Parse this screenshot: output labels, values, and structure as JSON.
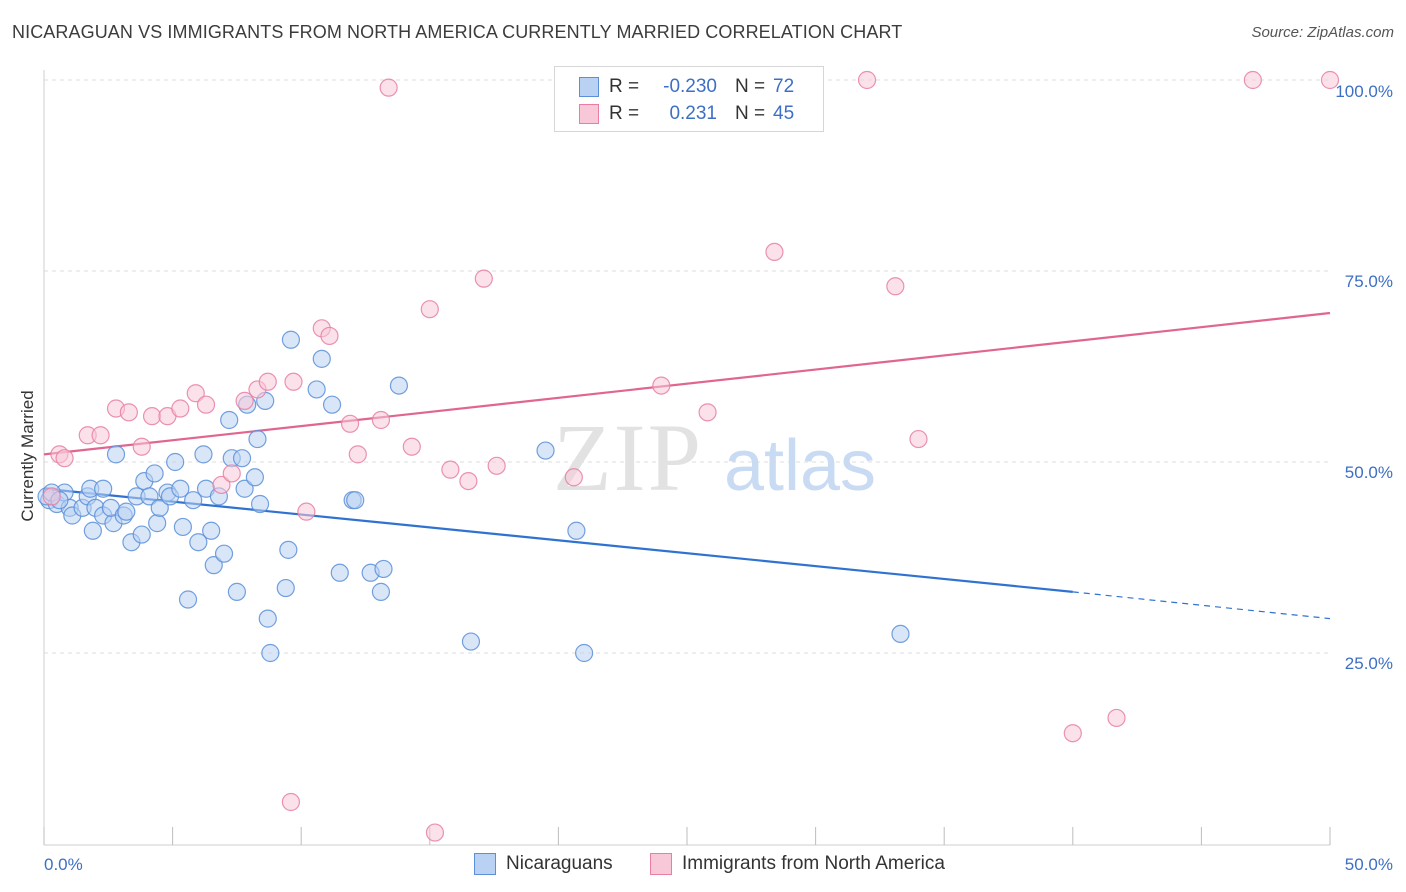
{
  "title": "NICARAGUAN VS IMMIGRANTS FROM NORTH AMERICA CURRENTLY MARRIED CORRELATION CHART",
  "source": "Source: ZipAtlas.com",
  "watermark": {
    "zip": "ZIP",
    "atlas": "atlas"
  },
  "legend": {
    "rows": [
      {
        "r_label": "R =",
        "r_value": "-0.230",
        "n_label": "N =",
        "n_value": "72",
        "color": "#5b8fd9",
        "fill": "#b9d2f3"
      },
      {
        "r_label": "R =",
        "r_value": "0.231",
        "n_label": "N =",
        "n_value": "45",
        "color": "#e87fa3",
        "fill": "#f8c8d8"
      }
    ]
  },
  "bottom_legend": [
    {
      "label": "Nicaraguans",
      "color": "#5b8fd9",
      "fill": "#b9d2f3"
    },
    {
      "label": "Immigrants from North America",
      "color": "#e87fa3",
      "fill": "#f8c8d8"
    }
  ],
  "chart_data": {
    "type": "scatter",
    "title": "NICARAGUAN VS IMMIGRANTS FROM NORTH AMERICA CURRENTLY MARRIED CORRELATION CHART",
    "xlabel": "",
    "ylabel": "Currently Married",
    "xlim": [
      0,
      50
    ],
    "ylim": [
      0,
      105
    ],
    "x_tick_labels": [
      "0.0%",
      "50.0%"
    ],
    "y_ticks": [
      25,
      50,
      75,
      100
    ],
    "y_tick_labels": [
      "25.0%",
      "50.0%",
      "75.0%",
      "100.0%"
    ],
    "grid": true,
    "series": [
      {
        "name": "Nicaraguans",
        "color": "#5b8fd9",
        "fill": "#b9d2f3",
        "trend": {
          "x0": 0,
          "y0": 46.5,
          "x1": 40,
          "y1": 33,
          "dash_to_x": 50,
          "dash_to_y": 29.5
        },
        "points": [
          [
            0.2,
            45
          ],
          [
            0.5,
            44.5
          ],
          [
            0.8,
            46
          ],
          [
            1,
            44
          ],
          [
            1.1,
            43
          ],
          [
            1.5,
            44
          ],
          [
            1.7,
            45.5
          ],
          [
            1.8,
            46.5
          ],
          [
            1.9,
            41
          ],
          [
            2.0,
            44
          ],
          [
            2.3,
            43
          ],
          [
            2.3,
            46.5
          ],
          [
            2.7,
            42
          ],
          [
            2.6,
            44
          ],
          [
            2.8,
            51
          ],
          [
            3.1,
            43
          ],
          [
            3.2,
            43.5
          ],
          [
            3.4,
            39.5
          ],
          [
            3.6,
            45.5
          ],
          [
            3.8,
            40.5
          ],
          [
            3.9,
            47.5
          ],
          [
            4.1,
            45.5
          ],
          [
            4.3,
            48.5
          ],
          [
            4.4,
            42
          ],
          [
            4.5,
            44
          ],
          [
            4.8,
            46
          ],
          [
            4.9,
            45.5
          ],
          [
            5.1,
            50
          ],
          [
            5.3,
            46.5
          ],
          [
            5.4,
            41.5
          ],
          [
            5.6,
            32
          ],
          [
            5.8,
            45
          ],
          [
            6.0,
            39.5
          ],
          [
            6.2,
            51
          ],
          [
            6.3,
            46.5
          ],
          [
            6.5,
            41
          ],
          [
            6.6,
            36.5
          ],
          [
            6.8,
            45.5
          ],
          [
            7.0,
            38
          ],
          [
            7.2,
            55.5
          ],
          [
            7.3,
            50.5
          ],
          [
            7.5,
            33
          ],
          [
            7.7,
            50.5
          ],
          [
            7.8,
            46.5
          ],
          [
            7.9,
            57.5
          ],
          [
            8.2,
            48
          ],
          [
            8.3,
            53
          ],
          [
            8.4,
            44.5
          ],
          [
            8.6,
            58
          ],
          [
            8.7,
            29.5
          ],
          [
            8.8,
            25
          ],
          [
            9.4,
            33.5
          ],
          [
            9.5,
            38.5
          ],
          [
            9.6,
            66
          ],
          [
            10.6,
            59.5
          ],
          [
            10.8,
            63.5
          ],
          [
            11.2,
            57.5
          ],
          [
            11.5,
            35.5
          ],
          [
            12.0,
            45
          ],
          [
            12.1,
            45
          ],
          [
            12.7,
            35.5
          ],
          [
            13.1,
            33
          ],
          [
            13.2,
            36
          ],
          [
            13.8,
            60
          ],
          [
            16.6,
            26.5
          ],
          [
            19.5,
            51.5
          ],
          [
            20.7,
            41
          ],
          [
            21.0,
            25
          ],
          [
            33.3,
            27.5
          ],
          [
            0.1,
            45.5
          ],
          [
            0.3,
            46
          ],
          [
            0.6,
            45
          ]
        ]
      },
      {
        "name": "Immigrants from North America",
        "color": "#e87fa3",
        "fill": "#f8c8d8",
        "trend": {
          "x0": 0,
          "y0": 51,
          "x1": 50,
          "y1": 69.5
        },
        "points": [
          [
            0.3,
            45.5
          ],
          [
            0.6,
            51
          ],
          [
            0.8,
            50.5
          ],
          [
            1.7,
            53.5
          ],
          [
            2.2,
            53.5
          ],
          [
            2.8,
            57
          ],
          [
            3.3,
            56.5
          ],
          [
            3.8,
            52
          ],
          [
            4.2,
            56
          ],
          [
            4.8,
            56
          ],
          [
            5.3,
            57
          ],
          [
            5.9,
            59
          ],
          [
            6.3,
            57.5
          ],
          [
            6.9,
            47
          ],
          [
            7.3,
            48.5
          ],
          [
            7.8,
            58
          ],
          [
            8.3,
            59.5
          ],
          [
            8.7,
            60.5
          ],
          [
            9.6,
            5.5
          ],
          [
            9.7,
            60.5
          ],
          [
            10.2,
            43.5
          ],
          [
            10.8,
            67.5
          ],
          [
            11.1,
            66.5
          ],
          [
            11.9,
            55
          ],
          [
            12.2,
            51
          ],
          [
            13.1,
            55.5
          ],
          [
            13.4,
            99
          ],
          [
            14.3,
            52
          ],
          [
            15.0,
            70
          ],
          [
            15.2,
            1.5
          ],
          [
            15.8,
            49
          ],
          [
            16.5,
            47.5
          ],
          [
            17.1,
            74
          ],
          [
            17.6,
            49.5
          ],
          [
            20.6,
            48
          ],
          [
            24.0,
            60
          ],
          [
            25.8,
            56.5
          ],
          [
            28.4,
            77.5
          ],
          [
            32.0,
            100
          ],
          [
            33.1,
            73
          ],
          [
            34.0,
            53
          ],
          [
            40.0,
            14.5
          ],
          [
            41.7,
            16.5
          ],
          [
            47.0,
            100
          ],
          [
            50.0,
            100
          ]
        ]
      }
    ]
  }
}
